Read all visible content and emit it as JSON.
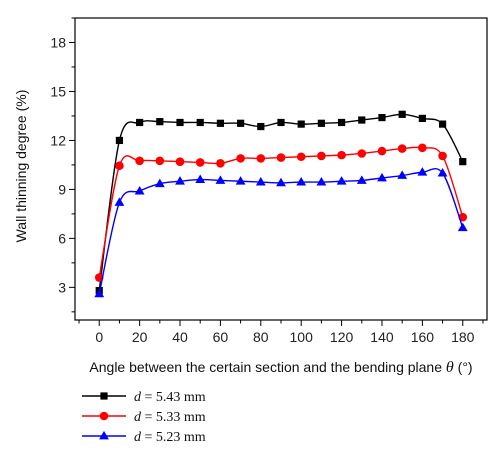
{
  "chart_data": {
    "type": "line",
    "xlabel_prefix": "Angle between the certain section and the bending plane ",
    "xlabel_symbol": "θ",
    "xlabel_unit": " (°)",
    "ylabel": "Wall thinning degree (%)",
    "xlim": [
      -12,
      192
    ],
    "ylim": [
      1.0,
      19.5
    ],
    "xticks": [
      0,
      20,
      40,
      60,
      80,
      100,
      120,
      140,
      160,
      180
    ],
    "yticks": [
      3,
      6,
      9,
      12,
      15,
      18
    ],
    "grid": false,
    "legend_position": "below-left",
    "series": [
      {
        "name": "d = 5.43 mm",
        "name_var": "d",
        "name_rest": " = 5.43 mm",
        "color": "#000000",
        "marker": "square",
        "x": [
          0,
          10,
          20,
          30,
          40,
          50,
          60,
          70,
          80,
          90,
          100,
          110,
          120,
          130,
          140,
          150,
          160,
          170,
          180
        ],
        "y": [
          2.8,
          12.0,
          13.1,
          13.15,
          13.1,
          13.1,
          13.05,
          13.05,
          12.85,
          13.1,
          13.0,
          13.05,
          13.1,
          13.25,
          13.4,
          13.6,
          13.35,
          13.0,
          10.7
        ]
      },
      {
        "name": "d = 5.33 mm",
        "name_var": "d",
        "name_rest": " = 5.33 mm",
        "color": "#ff0000",
        "marker": "circle",
        "x": [
          0,
          10,
          20,
          30,
          40,
          50,
          60,
          70,
          80,
          90,
          100,
          110,
          120,
          130,
          140,
          150,
          160,
          170,
          180
        ],
        "y": [
          3.6,
          10.45,
          10.75,
          10.75,
          10.7,
          10.65,
          10.6,
          10.9,
          10.9,
          10.95,
          11.0,
          11.05,
          11.1,
          11.2,
          11.35,
          11.5,
          11.55,
          11.05,
          7.3
        ]
      },
      {
        "name": "d = 5.23 mm",
        "name_var": "d",
        "name_rest": " = 5.23 mm",
        "color": "#0000ff",
        "marker": "triangle",
        "x": [
          0,
          10,
          20,
          30,
          40,
          50,
          60,
          70,
          80,
          90,
          100,
          110,
          120,
          130,
          140,
          150,
          160,
          170,
          180
        ],
        "y": [
          2.6,
          8.2,
          8.9,
          9.35,
          9.5,
          9.6,
          9.55,
          9.5,
          9.45,
          9.4,
          9.45,
          9.45,
          9.5,
          9.55,
          9.7,
          9.85,
          10.05,
          10.0,
          6.65
        ]
      }
    ]
  }
}
